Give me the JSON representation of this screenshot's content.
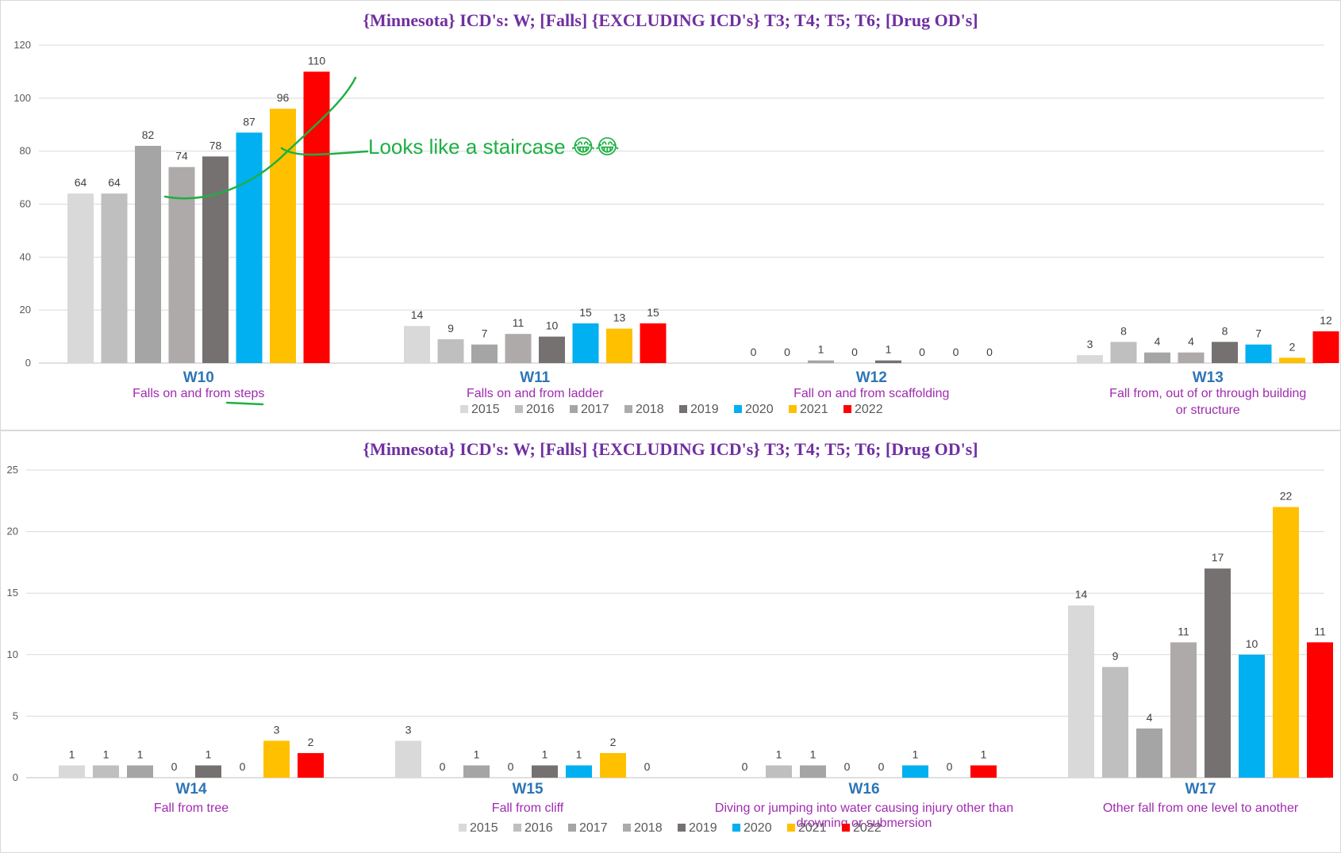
{
  "colors": {
    "2015": "#d9d9d9",
    "2016": "#bfbfbf",
    "2017": "#a5a5a5",
    "2018": "#aeaaaa",
    "2019": "#767171",
    "2020": "#00b0f0",
    "2021": "#ffc000",
    "2022": "#ff0000",
    "title": "#7030a0",
    "code": "#2e75b6",
    "description": "#a02bb0",
    "annotation": "#1db044"
  },
  "annotation": {
    "text": "Looks like a staircase 😂😂"
  },
  "chart_data": [
    {
      "type": "bar",
      "title": "{Minnesota} ICD's: W;  [Falls] {EXCLUDING ICD's} T3; T4; T5; T6; [Drug OD's]",
      "series_names": [
        "2015",
        "2016",
        "2017",
        "2018",
        "2019",
        "2020",
        "2021",
        "2022"
      ],
      "ylim": [
        0,
        120
      ],
      "yticks": [
        0,
        20,
        40,
        60,
        80,
        100,
        120
      ],
      "legend_position": "bottom",
      "grid": true,
      "groups": [
        {
          "code": "W10",
          "description": [
            "Falls on and from steps"
          ],
          "values": [
            64,
            64,
            82,
            74,
            78,
            87,
            96,
            110
          ]
        },
        {
          "code": "W11",
          "description": [
            "Falls on and from ladder"
          ],
          "values": [
            14,
            9,
            7,
            11,
            10,
            15,
            13,
            15
          ]
        },
        {
          "code": "W12",
          "description": [
            "Fall on and from scaffolding"
          ],
          "values": [
            0,
            0,
            1,
            0,
            1,
            0,
            0,
            0
          ]
        },
        {
          "code": "W13",
          "description": [
            "Fall from, out of or through building",
            "or structure"
          ],
          "values": [
            3,
            8,
            4,
            4,
            8,
            7,
            2,
            12
          ]
        }
      ]
    },
    {
      "type": "bar",
      "title": "{Minnesota} ICD's: W;  [Falls] {EXCLUDING ICD's} T3; T4; T5; T6; [Drug OD's]",
      "series_names": [
        "2015",
        "2016",
        "2017",
        "2018",
        "2019",
        "2020",
        "2021",
        "2022"
      ],
      "ylim": [
        0,
        25
      ],
      "yticks": [
        0,
        5,
        10,
        15,
        20,
        25
      ],
      "legend_position": "bottom",
      "grid": true,
      "groups": [
        {
          "code": "W14",
          "description": [
            "Fall from tree"
          ],
          "values": [
            1,
            1,
            1,
            0,
            1,
            0,
            3,
            2
          ]
        },
        {
          "code": "W15",
          "description": [
            "Fall from cliff"
          ],
          "values": [
            3,
            0,
            1,
            0,
            1,
            1,
            2,
            0
          ]
        },
        {
          "code": "W16",
          "description": [
            "Diving or jumping into water causing injury other than",
            "drowning or submersion"
          ],
          "values": [
            0,
            1,
            1,
            0,
            0,
            1,
            0,
            1
          ]
        },
        {
          "code": "W17",
          "description": [
            "Other fall from one level to another"
          ],
          "values": [
            14,
            9,
            4,
            11,
            17,
            10,
            22,
            11
          ]
        }
      ]
    }
  ]
}
